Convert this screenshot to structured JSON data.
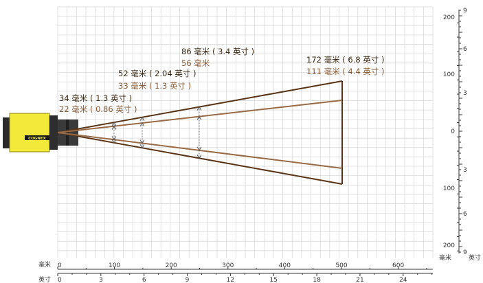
{
  "colors": {
    "outer_fov": "#5a3415",
    "inner_fov": "#9a6a44",
    "grid": "#d4d4d4",
    "axis": "#333333",
    "camera_body": "#f2e93a"
  },
  "camera": {
    "brand": "COGNEX",
    "icon": "camera-icon"
  },
  "callouts": [
    {
      "wide": "34 毫米 ( 1.3 英寸 )",
      "narrow": "22 毫米 ( 0.86 英寸 )"
    },
    {
      "wide": "52 毫米 ( 2.04 英寸 )",
      "narrow": "33 毫米 ( 1.3 英寸 )"
    },
    {
      "wide": "86 毫米 ( 3.4 英寸 )",
      "narrow": "56 毫米"
    },
    {
      "wide": "172 毫米 ( 6.8 英寸 )",
      "narrow": "111 毫米 ( 4.4 英寸 )"
    }
  ],
  "bottom_axis_mm": {
    "unit": "毫米",
    "ticks": [
      "0",
      "100",
      "200",
      "300",
      "400",
      "500",
      "600"
    ]
  },
  "bottom_axis_in": {
    "unit": "英寸",
    "ticks": [
      "0",
      "3",
      "6",
      "9",
      "12",
      "15",
      "18",
      "21",
      "24"
    ]
  },
  "right_axis_mm": {
    "unit": "毫米",
    "ticks": [
      "200",
      "100",
      "0",
      "100",
      "200"
    ]
  },
  "right_axis_in": {
    "unit": "英寸",
    "ticks": [
      "9",
      "6",
      "3",
      "3",
      "6",
      "9"
    ]
  }
}
